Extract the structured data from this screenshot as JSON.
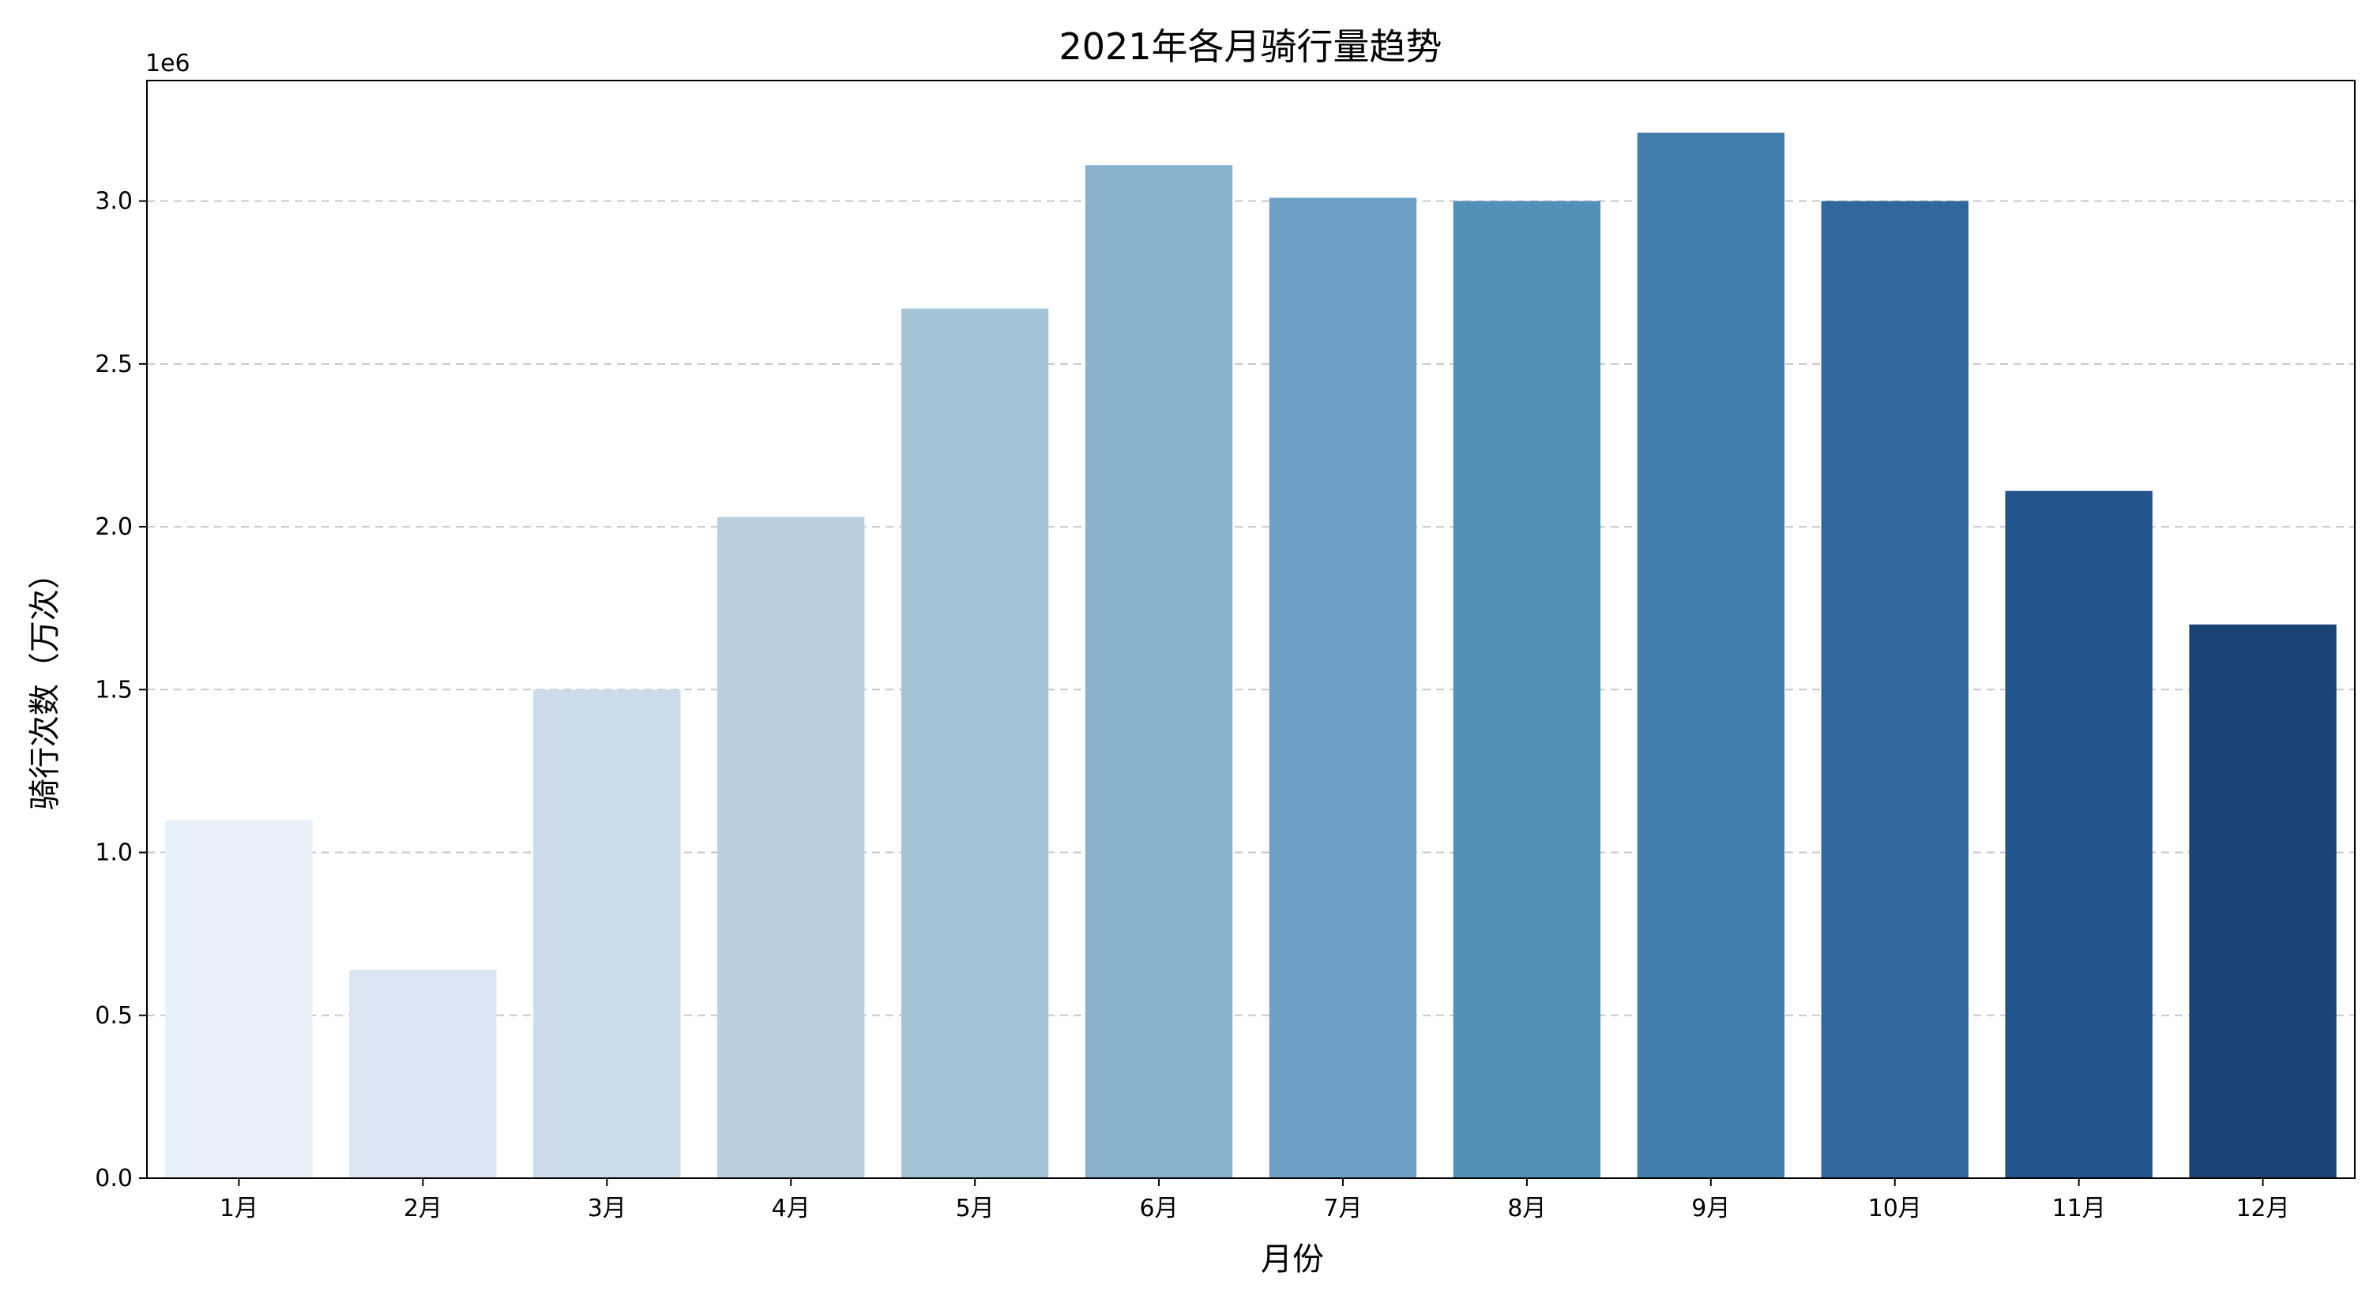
{
  "chart_data": {
    "type": "bar",
    "title": "2021年各月骑行量趋势",
    "xlabel": "月份",
    "ylabel": "骑行次数（万次）",
    "y_offset_label": "1e6",
    "categories": [
      "1月",
      "2月",
      "3月",
      "4月",
      "5月",
      "6月",
      "7月",
      "8月",
      "9月",
      "10月",
      "11月",
      "12月"
    ],
    "values": [
      1100000,
      640000,
      1500000,
      2030000,
      2670000,
      3110000,
      3010000,
      3000000,
      3210000,
      3000000,
      2110000,
      1700000
    ],
    "colors": [
      "#e8f0f9",
      "#dbe6f2",
      "#ccdcea",
      "#bad0e1",
      "#a3c3d7",
      "#87b1cd",
      "#6ea1c4",
      "#5491b8",
      "#417eac",
      "#30689d",
      "#22548b",
      "#1b4374"
    ],
    "ylim": [
      0,
      3370000
    ],
    "yticks": [
      0,
      500000,
      1000000,
      1500000,
      2000000,
      2500000,
      3000000
    ],
    "ytick_labels": [
      "0.0",
      "0.5",
      "1.0",
      "1.5",
      "2.0",
      "2.5",
      "3.0"
    ],
    "grid": "y dashed",
    "legend": "none"
  }
}
